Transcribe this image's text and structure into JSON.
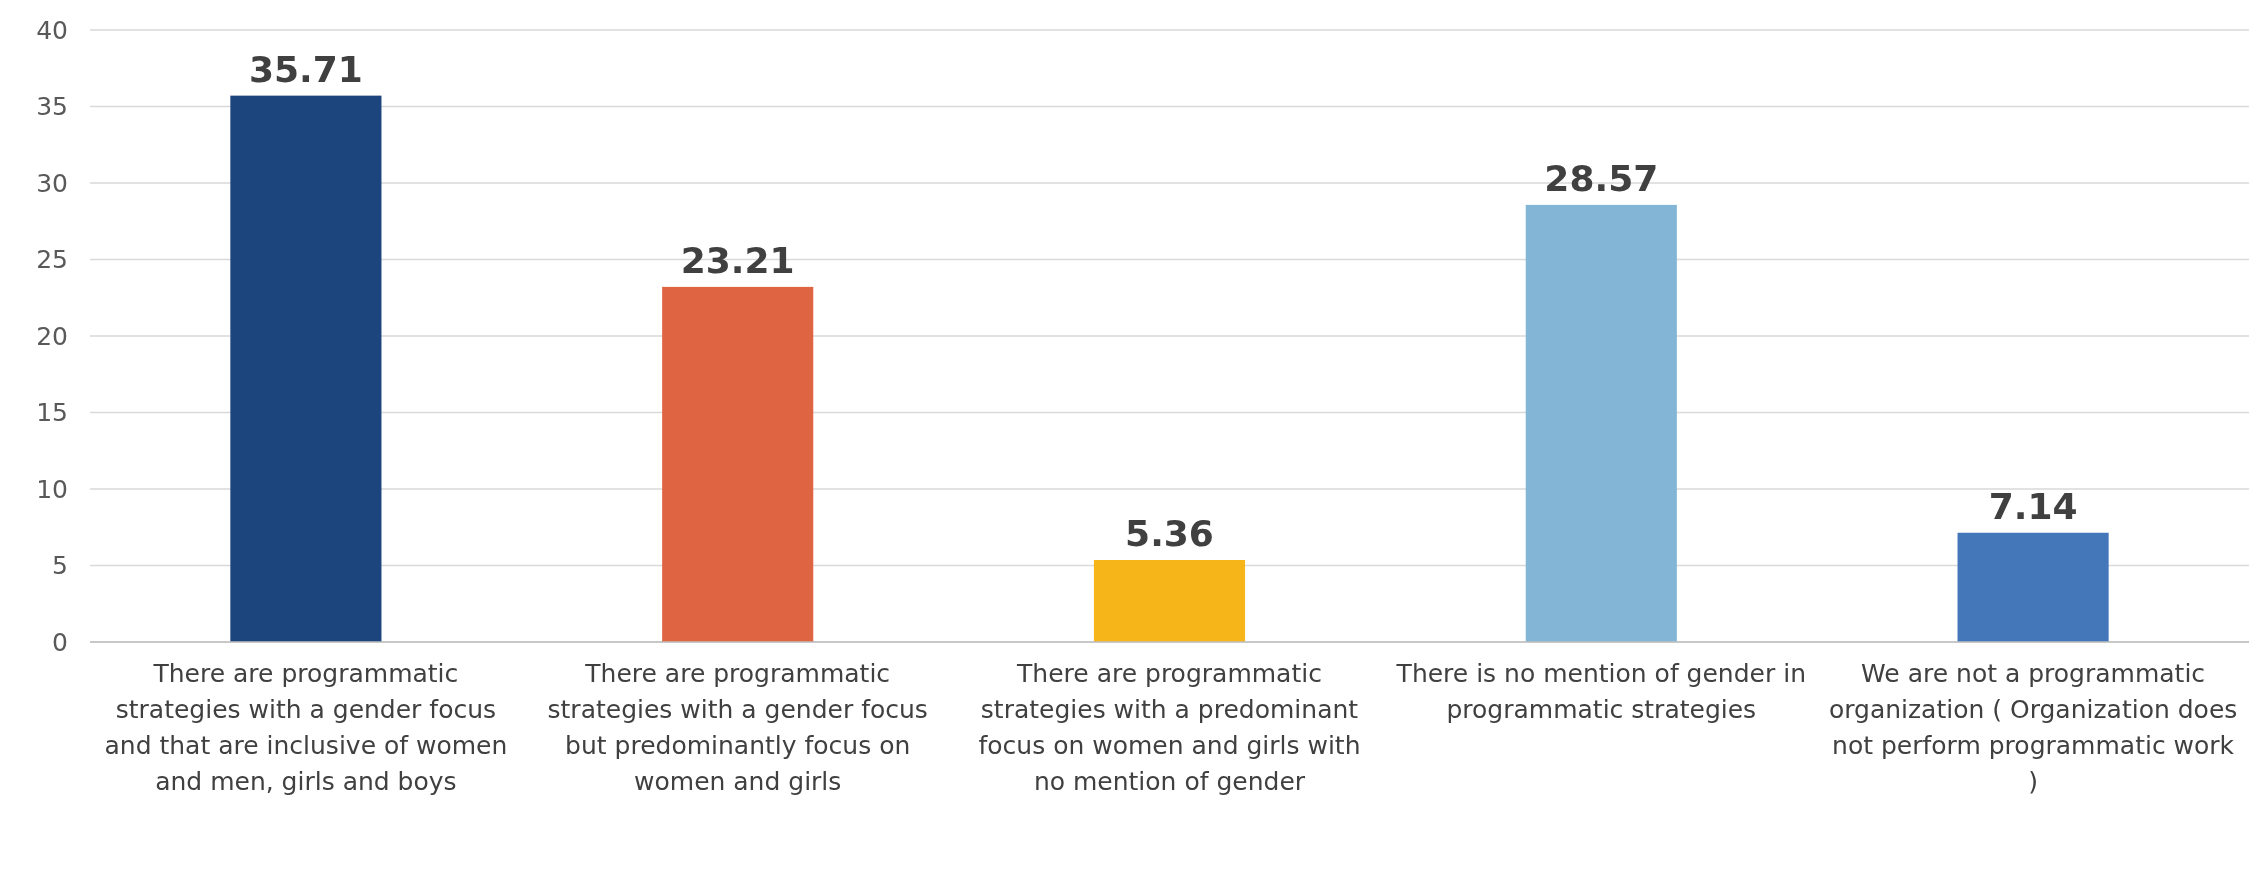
{
  "chart_data": {
    "type": "bar",
    "categories": [
      "There are programmatic strategies with a gender focus and that are inclusive of women and men, girls and boys",
      "There are programmatic strategies with a gender focus but predominantly focus on women and girls",
      "There are programmatic strategies with a predominant focus on women and girls with no mention of gender",
      "There is no mention of gender in programmatic strategies",
      "We are not a programmatic organization ( Organization does not perform programmatic work )"
    ],
    "values": [
      35.71,
      23.21,
      5.36,
      28.57,
      7.14
    ],
    "colors": [
      "#1c457d",
      "#df6441",
      "#f6b519",
      "#83b6d6",
      "#4476ba"
    ],
    "ylim": [
      0,
      40
    ],
    "yticks": [
      0,
      5,
      10,
      15,
      20,
      25,
      30,
      35,
      40
    ],
    "grid": "y",
    "data_labels": true
  }
}
